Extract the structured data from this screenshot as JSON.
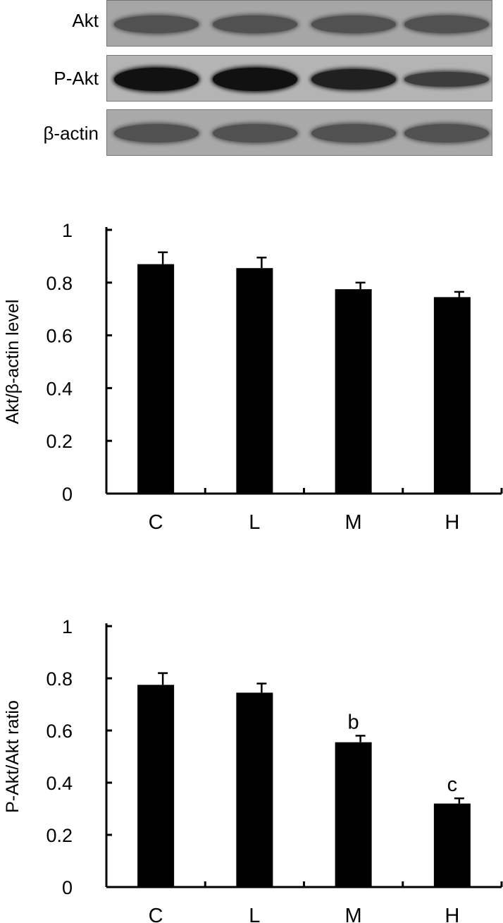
{
  "western_blot": {
    "lanes": [
      "C",
      "L",
      "M",
      "H"
    ],
    "rows": [
      {
        "label": "Akt",
        "background": "#a6a6a6",
        "band_intensity": [
          0.55,
          0.55,
          0.55,
          0.55
        ],
        "band_color": "#3c3c3c"
      },
      {
        "label": "P-Akt",
        "background": "#b4b4b4",
        "band_intensity": [
          0.95,
          0.95,
          0.75,
          0.35
        ],
        "band_color": "#0e0e0e"
      },
      {
        "label": "β-actin",
        "background": "#a9a9a9",
        "band_intensity": [
          0.6,
          0.6,
          0.6,
          0.6
        ],
        "band_color": "#3e3e3e"
      }
    ]
  },
  "chart_data": [
    {
      "type": "bar",
      "categories": [
        "C",
        "L",
        "M",
        "H"
      ],
      "values": [
        0.87,
        0.855,
        0.775,
        0.745
      ],
      "errors": [
        0.045,
        0.04,
        0.025,
        0.02
      ],
      "annotations": [
        "",
        "",
        "",
        ""
      ],
      "ylabel": "Akt/β-actin level",
      "ylim": [
        0,
        1
      ],
      "yticks": [
        0,
        0.2,
        0.4,
        0.6,
        0.8,
        1
      ],
      "ytick_labels": [
        "0",
        "0.2",
        "0.4",
        "0.6",
        "0.8",
        "1"
      ],
      "bar_color": "#000000",
      "grid": false
    },
    {
      "type": "bar",
      "categories": [
        "C",
        "L",
        "M",
        "H"
      ],
      "values": [
        0.775,
        0.745,
        0.555,
        0.32
      ],
      "errors": [
        0.045,
        0.035,
        0.025,
        0.02
      ],
      "annotations": [
        "",
        "",
        "b",
        "c"
      ],
      "ylabel": "P-Akt/Akt ratio",
      "ylim": [
        0,
        1
      ],
      "yticks": [
        0,
        0.2,
        0.4,
        0.6,
        0.8,
        1
      ],
      "ytick_labels": [
        "0",
        "0.2",
        "0.4",
        "0.6",
        "0.8",
        "1"
      ],
      "bar_color": "#000000",
      "grid": false
    }
  ]
}
